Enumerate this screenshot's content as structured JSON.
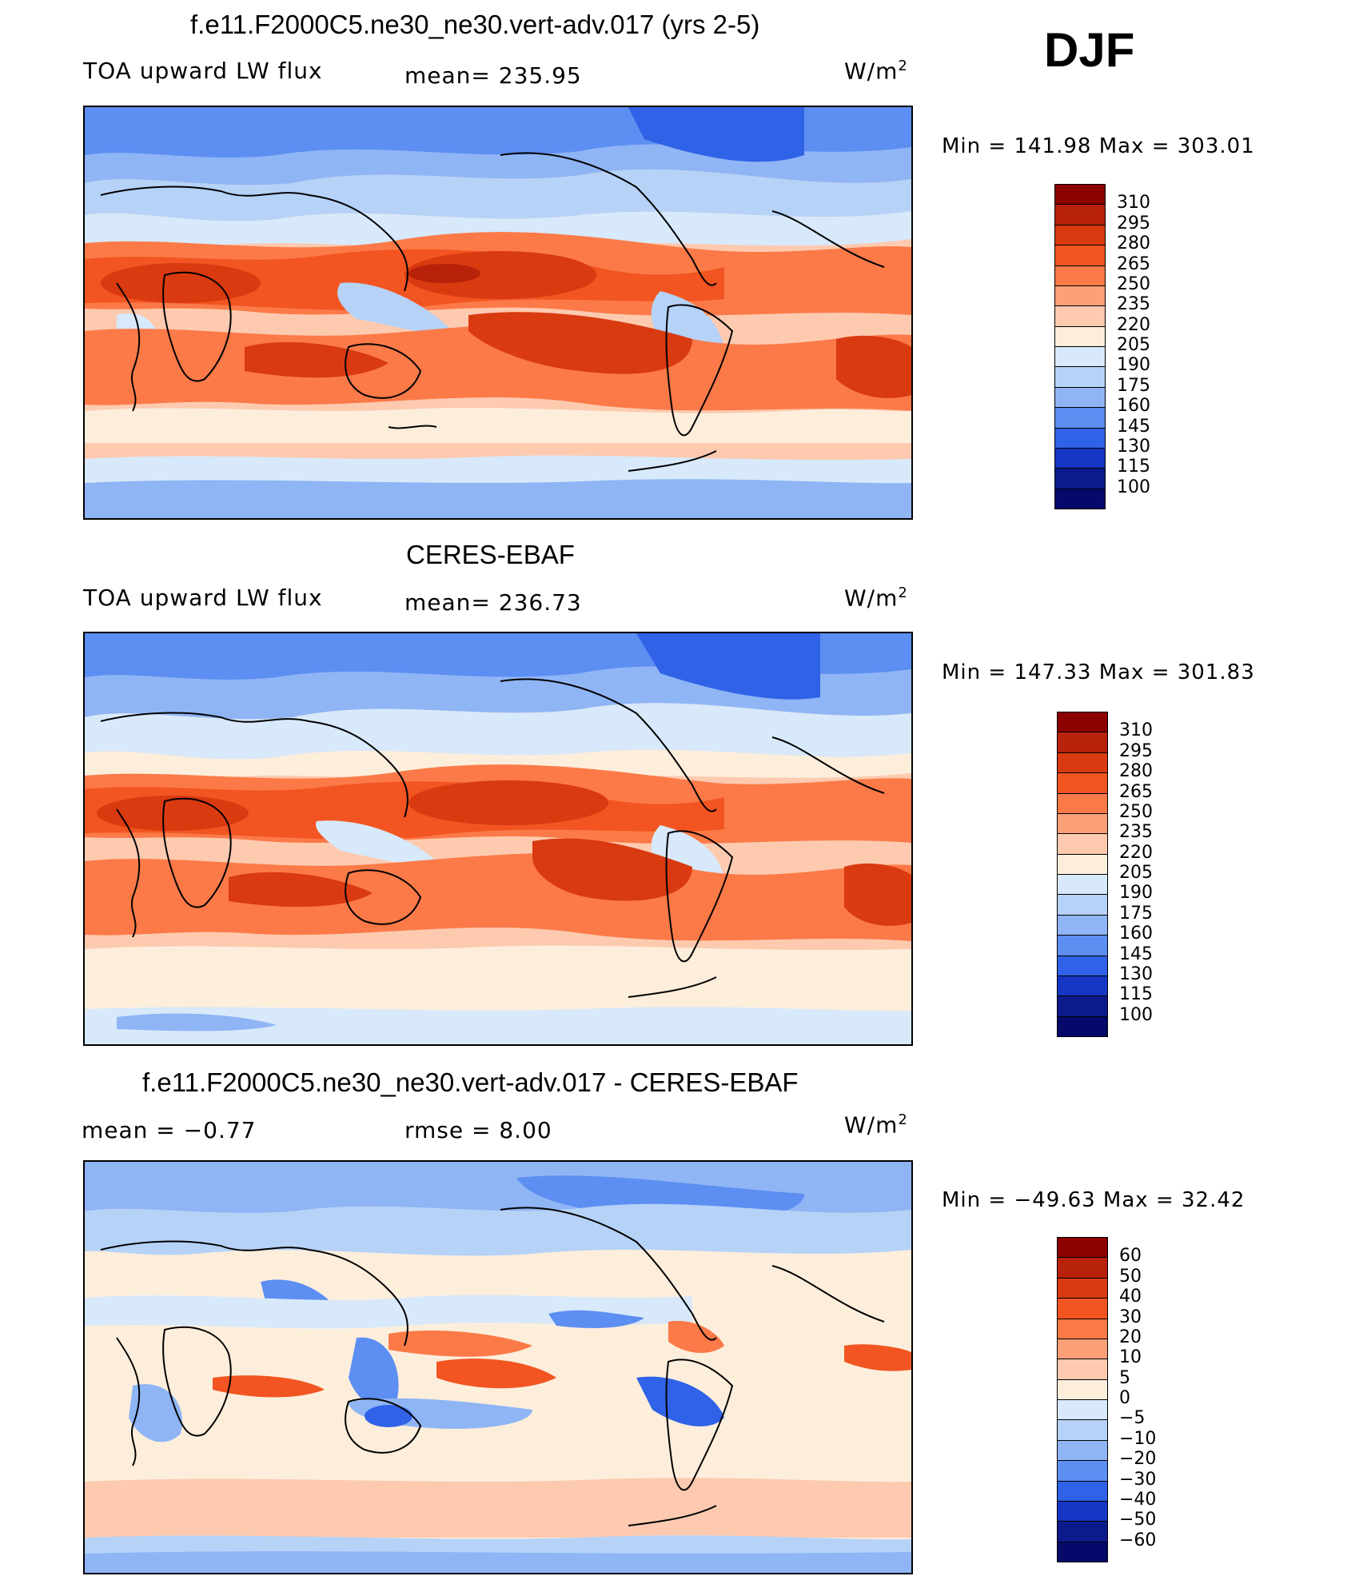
{
  "season": "DJF",
  "panels": [
    {
      "title": "f.e11.F2000C5.ne30_ne30.vert-adv.017 (yrs 2-5)",
      "left_label": "TOA upward LW flux",
      "mean_text": "mean= 235.95",
      "rmse_text": "",
      "units": "W/m",
      "units_sup": "2",
      "minmax": "Min = 141.98 Max = 303.01"
    },
    {
      "title": "CERES-EBAF",
      "left_label": "TOA upward LW flux",
      "mean_text": "mean= 236.73",
      "rmse_text": "",
      "units": "W/m",
      "units_sup": "2",
      "minmax": "Min = 147.33 Max = 301.83"
    },
    {
      "title": "f.e11.F2000C5.ne30_ne30.vert-adv.017 - CERES-EBAF",
      "left_label": "mean =   −0.77",
      "mean_text": "",
      "rmse_text": "rmse =    8.00",
      "units": "W/m",
      "units_sup": "2",
      "minmax": "Min = −49.63 Max =   32.42"
    }
  ],
  "colorbars": [
    {
      "labels": [
        "310",
        "295",
        "280",
        "265",
        "250",
        "235",
        "220",
        "205",
        "190",
        "175",
        "160",
        "145",
        "130",
        "115",
        "100"
      ],
      "colors": [
        "#8b0000",
        "#b8220a",
        "#d93a10",
        "#f25521",
        "#fb7a48",
        "#fca07a",
        "#fdcab0",
        "#fdeedc",
        "#d7e9fa",
        "#b6d2f7",
        "#8fb5f5",
        "#5d8ef2",
        "#2f62e6",
        "#1536c4",
        "#0c1a8c",
        "#050a6a"
      ]
    },
    {
      "labels": [
        "310",
        "295",
        "280",
        "265",
        "250",
        "235",
        "220",
        "205",
        "190",
        "175",
        "160",
        "145",
        "130",
        "115",
        "100"
      ],
      "colors": [
        "#8b0000",
        "#b8220a",
        "#d93a10",
        "#f25521",
        "#fb7a48",
        "#fca07a",
        "#fdcab0",
        "#fdeedc",
        "#d7e9fa",
        "#b6d2f7",
        "#8fb5f5",
        "#5d8ef2",
        "#2f62e6",
        "#1536c4",
        "#0c1a8c",
        "#050a6a"
      ]
    },
    {
      "labels": [
        "60",
        "50",
        "40",
        "30",
        "20",
        "10",
        "5",
        "0",
        "−5",
        "−10",
        "−20",
        "−30",
        "−40",
        "−50",
        "−60"
      ],
      "colors": [
        "#8b0000",
        "#b8220a",
        "#d93a10",
        "#f25521",
        "#fb7a48",
        "#fca07a",
        "#fdcab0",
        "#fdeedc",
        "#d7e9fa",
        "#b6d2f7",
        "#8fb5f5",
        "#5d8ef2",
        "#2f62e6",
        "#1536c4",
        "#0c1a8c",
        "#050a6a"
      ]
    }
  ],
  "chart_data": [
    {
      "type": "heatmap",
      "title": "f.e11.F2000C5.ne30_ne30.vert-adv.017 (yrs 2-5)",
      "variable": "TOA upward LW flux",
      "units": "W/m2",
      "mean": 235.95,
      "min": 141.98,
      "max": 303.01,
      "levels": [
        100,
        115,
        130,
        145,
        160,
        175,
        190,
        205,
        220,
        235,
        250,
        265,
        280,
        295,
        310
      ]
    },
    {
      "type": "heatmap",
      "title": "CERES-EBAF",
      "variable": "TOA upward LW flux",
      "units": "W/m2",
      "mean": 236.73,
      "min": 147.33,
      "max": 301.83,
      "levels": [
        100,
        115,
        130,
        145,
        160,
        175,
        190,
        205,
        220,
        235,
        250,
        265,
        280,
        295,
        310
      ]
    },
    {
      "type": "heatmap",
      "title": "f.e11.F2000C5.ne30_ne30.vert-adv.017 - CERES-EBAF",
      "units": "W/m2",
      "mean": -0.77,
      "rmse": 8.0,
      "min": -49.63,
      "max": 32.42,
      "levels": [
        -60,
        -50,
        -40,
        -30,
        -20,
        -10,
        -5,
        0,
        5,
        10,
        20,
        30,
        40,
        50,
        60
      ]
    }
  ]
}
